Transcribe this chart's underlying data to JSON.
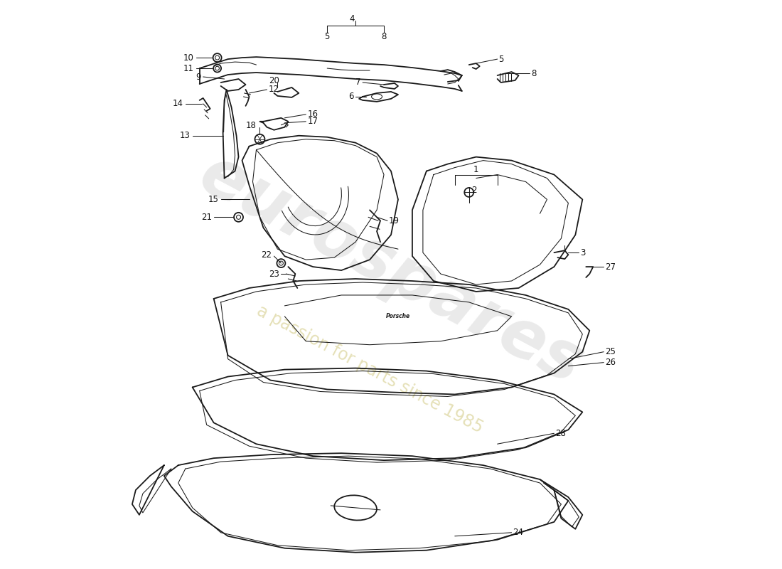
{
  "background_color": "#ffffff",
  "line_color": "#1a1a1a",
  "label_color": "#111111",
  "watermark1": "eurospares",
  "watermark2": "a passion for parts since 1985",
  "lw_main": 1.3,
  "lw_thin": 0.75,
  "lw_label": 0.7,
  "label_fontsize": 8.5
}
